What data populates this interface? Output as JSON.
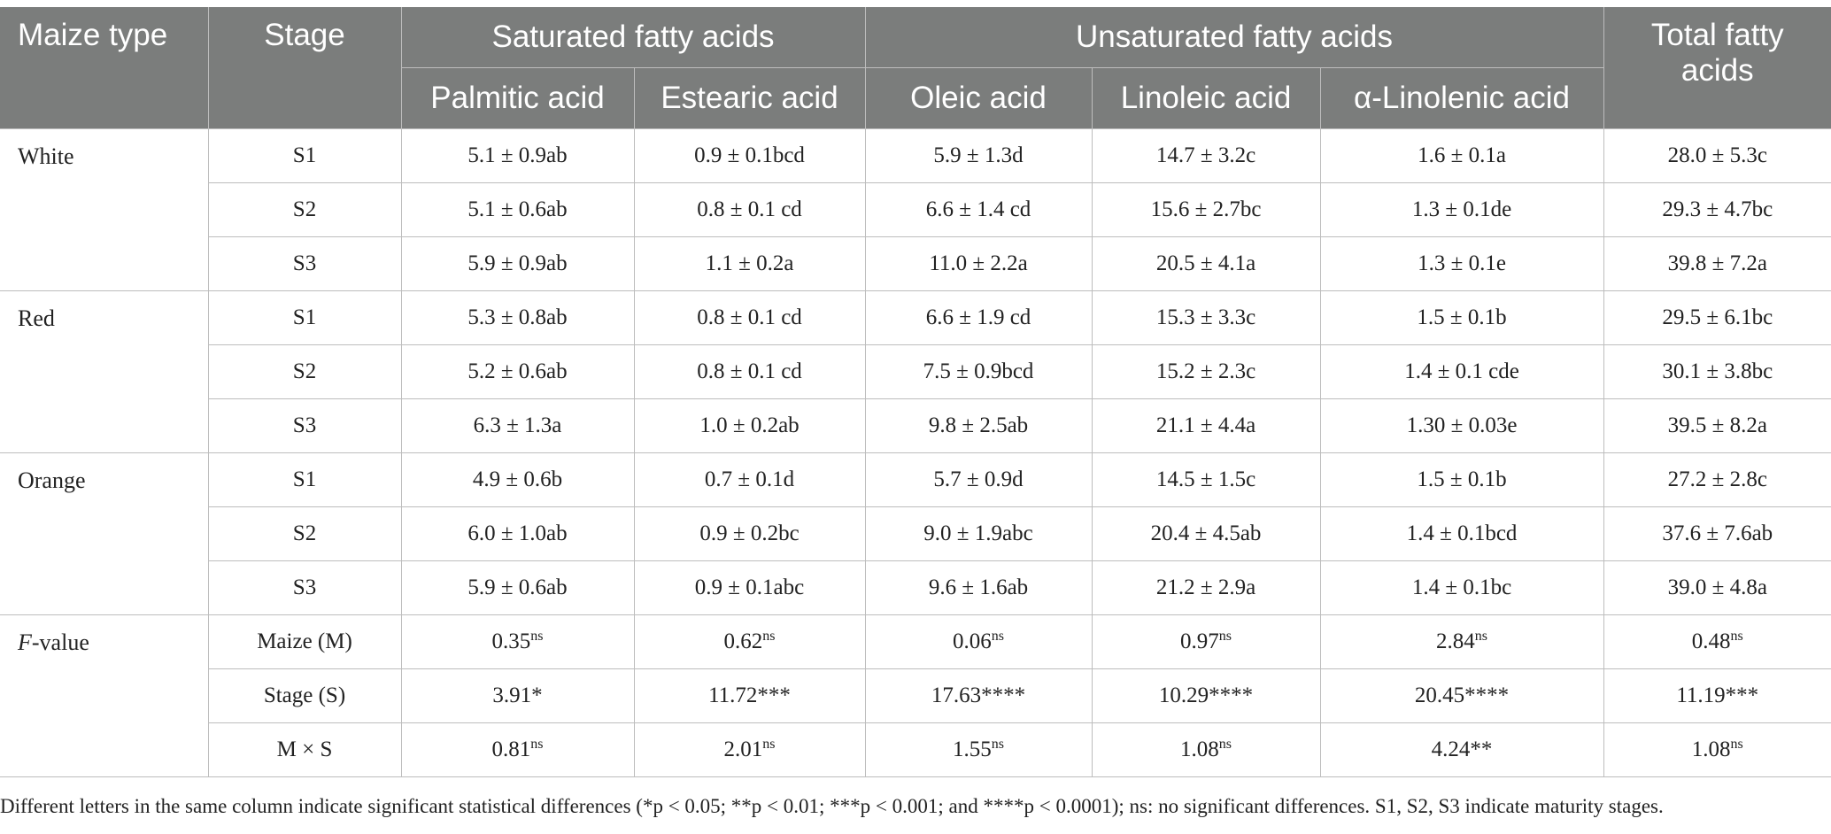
{
  "header": {
    "maize_type": "Maize type",
    "stage": "Stage",
    "saturated": "Saturated fatty acids",
    "unsaturated": "Unsaturated fatty acids",
    "total": "Total fatty acids",
    "palmitic": "Palmitic acid",
    "estearic": "Estearic acid",
    "oleic": "Oleic acid",
    "linoleic": "Linoleic acid",
    "linolenic": "α-Linolenic acid"
  },
  "groups": [
    {
      "name": "White",
      "rows": [
        {
          "stage": "S1",
          "palmitic": "5.1 ± 0.9ab",
          "estearic": "0.9 ± 0.1bcd",
          "oleic": "5.9 ± 1.3d",
          "linoleic": "14.7 ± 3.2c",
          "linolenic": "1.6 ± 0.1a",
          "total": "28.0 ± 5.3c"
        },
        {
          "stage": "S2",
          "palmitic": "5.1 ± 0.6ab",
          "estearic": "0.8 ± 0.1 cd",
          "oleic": "6.6 ± 1.4 cd",
          "linoleic": "15.6 ± 2.7bc",
          "linolenic": "1.3 ± 0.1de",
          "total": "29.3 ± 4.7bc"
        },
        {
          "stage": "S3",
          "palmitic": "5.9 ± 0.9ab",
          "estearic": "1.1 ± 0.2a",
          "oleic": "11.0 ± 2.2a",
          "linoleic": "20.5 ± 4.1a",
          "linolenic": "1.3 ± 0.1e",
          "total": "39.8 ± 7.2a"
        }
      ]
    },
    {
      "name": "Red",
      "rows": [
        {
          "stage": "S1",
          "palmitic": "5.3 ± 0.8ab",
          "estearic": "0.8 ± 0.1 cd",
          "oleic": "6.6 ± 1.9 cd",
          "linoleic": "15.3 ± 3.3c",
          "linolenic": "1.5 ± 0.1b",
          "total": "29.5 ± 6.1bc"
        },
        {
          "stage": "S2",
          "palmitic": "5.2 ± 0.6ab",
          "estearic": "0.8 ± 0.1 cd",
          "oleic": "7.5 ± 0.9bcd",
          "linoleic": "15.2 ± 2.3c",
          "linolenic": "1.4 ± 0.1 cde",
          "total": "30.1 ± 3.8bc"
        },
        {
          "stage": "S3",
          "palmitic": "6.3 ± 1.3a",
          "estearic": "1.0 ± 0.2ab",
          "oleic": "9.8 ± 2.5ab",
          "linoleic": "21.1 ± 4.4a",
          "linolenic": "1.30 ± 0.03e",
          "total": "39.5 ± 8.2a"
        }
      ]
    },
    {
      "name": "Orange",
      "rows": [
        {
          "stage": "S1",
          "palmitic": "4.9 ± 0.6b",
          "estearic": "0.7 ± 0.1d",
          "oleic": "5.7 ± 0.9d",
          "linoleic": "14.5 ± 1.5c",
          "linolenic": "1.5 ± 0.1b",
          "total": "27.2 ± 2.8c"
        },
        {
          "stage": "S2",
          "palmitic": "6.0 ± 1.0ab",
          "estearic": "0.9 ± 0.2bc",
          "oleic": "9.0 ± 1.9abc",
          "linoleic": "20.4 ± 4.5ab",
          "linolenic": "1.4 ± 0.1bcd",
          "total": "37.6 ± 7.6ab"
        },
        {
          "stage": "S3",
          "palmitic": "5.9 ± 0.6ab",
          "estearic": "0.9 ± 0.1abc",
          "oleic": "9.6 ± 1.6ab",
          "linoleic": "21.2 ± 2.9a",
          "linolenic": "1.4 ± 0.1bc",
          "total": "39.0 ± 4.8a"
        }
      ]
    }
  ],
  "fvalue": {
    "label_italic": "F",
    "label_rest": "-value",
    "rows": [
      {
        "stage": "Maize (M)",
        "palmitic": {
          "v": "0.35",
          "s": "ns"
        },
        "estearic": {
          "v": "0.62",
          "s": "ns"
        },
        "oleic": {
          "v": "0.06",
          "s": "ns"
        },
        "linoleic": {
          "v": "0.97",
          "s": "ns"
        },
        "linolenic": {
          "v": "2.84",
          "s": "ns"
        },
        "total": {
          "v": "0.48",
          "s": "ns"
        }
      },
      {
        "stage": "Stage (S)",
        "palmitic": {
          "v": "3.91*",
          "s": ""
        },
        "estearic": {
          "v": "11.72***",
          "s": ""
        },
        "oleic": {
          "v": "17.63****",
          "s": ""
        },
        "linoleic": {
          "v": "10.29****",
          "s": ""
        },
        "linolenic": {
          "v": "20.45****",
          "s": ""
        },
        "total": {
          "v": "11.19***",
          "s": ""
        }
      },
      {
        "stage": "M × S",
        "palmitic": {
          "v": "0.81",
          "s": "ns"
        },
        "estearic": {
          "v": "2.01",
          "s": "ns"
        },
        "oleic": {
          "v": "1.55",
          "s": "ns"
        },
        "linoleic": {
          "v": "1.08",
          "s": "ns"
        },
        "linolenic": {
          "v": "4.24**",
          "s": ""
        },
        "total": {
          "v": "1.08",
          "s": "ns"
        }
      }
    ]
  },
  "footnote": "Different letters in the same column indicate significant statistical differences (*p < 0.05; **p < 0.01; ***p < 0.001; and ****p < 0.0001); ns: no significant differences. S1, S2, S3 indicate maturity stages."
}
